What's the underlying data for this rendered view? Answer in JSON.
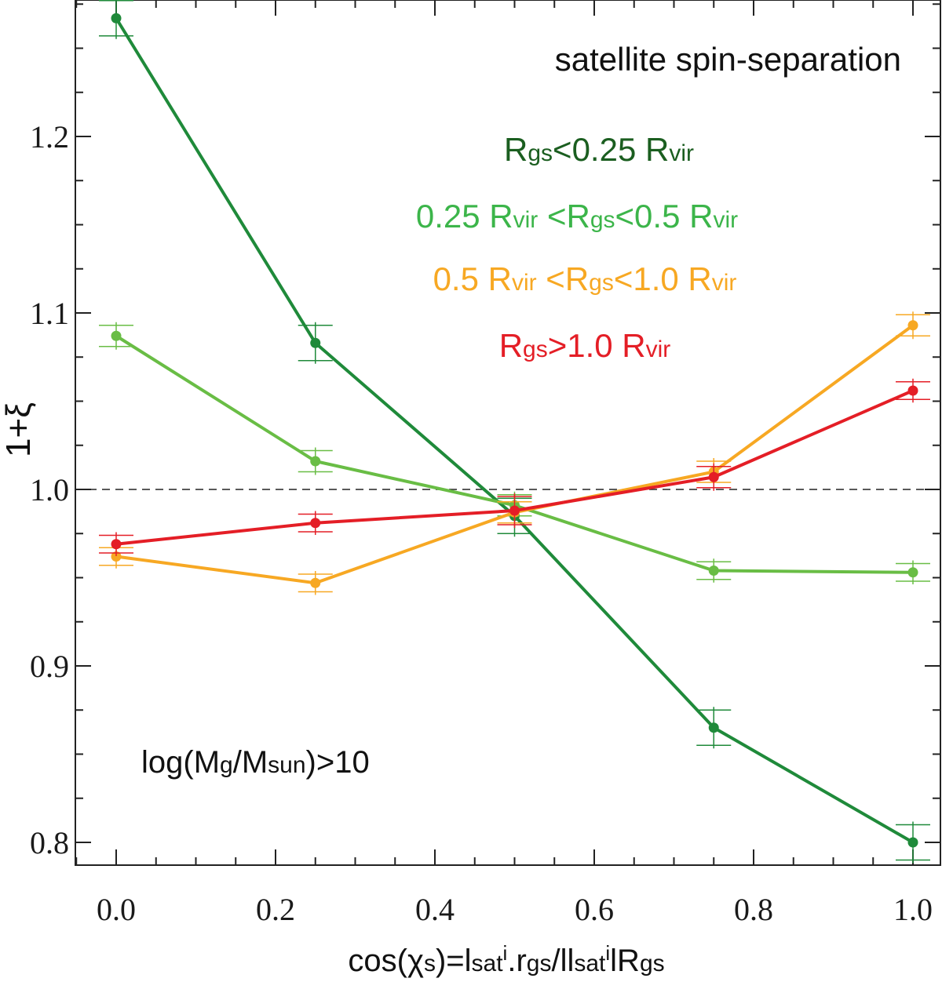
{
  "chart_data": {
    "type": "line",
    "title": "satellite spin-separation",
    "xlabel": "cos(χs)=lsatⁱ.rgs/llsatⁱlRgs",
    "ylabel": "1+ξ",
    "xlim": [
      -0.1,
      1.03
    ],
    "ylim": [
      0.79,
      1.28
    ],
    "xticks": [
      "0.0",
      "0.2",
      "0.4",
      "0.6",
      "0.8",
      "1.0"
    ],
    "yticks": [
      "0.8",
      "0.9",
      "1.0",
      "1.1",
      "1.2"
    ],
    "reference_line": 1.0,
    "annotation": "log(Mg/Msun)>10",
    "x": [
      0.0,
      0.25,
      0.5,
      0.75,
      1.0
    ],
    "series": [
      {
        "name": "Rgs<0.25 Rvir",
        "color": "#1f8a3a",
        "label_color": "#1b5e20",
        "values": [
          1.267,
          1.083,
          0.985,
          0.865,
          0.8
        ],
        "errors": [
          0.01,
          0.01,
          0.01,
          0.01,
          0.01
        ]
      },
      {
        "name": "0.25 Rvir <Rgs<0.5 Rvir",
        "color": "#69bd45",
        "label_color": "#3cb54a",
        "values": [
          1.087,
          1.016,
          0.991,
          0.954,
          0.953
        ],
        "errors": [
          0.006,
          0.006,
          0.006,
          0.005,
          0.005
        ]
      },
      {
        "name": "0.5 Rvir <Rgs<1.0 Rvir",
        "color": "#f7a823",
        "label_color": "#f7a823",
        "values": [
          0.962,
          0.947,
          0.987,
          1.01,
          1.093
        ],
        "errors": [
          0.005,
          0.005,
          0.006,
          0.006,
          0.006
        ]
      },
      {
        "name": "Rgs>1.0 Rvir",
        "color": "#e41e26",
        "label_color": "#e41e26",
        "values": [
          0.969,
          0.981,
          0.988,
          1.007,
          1.056
        ],
        "errors": [
          0.005,
          0.005,
          0.008,
          0.006,
          0.005
        ]
      }
    ]
  }
}
